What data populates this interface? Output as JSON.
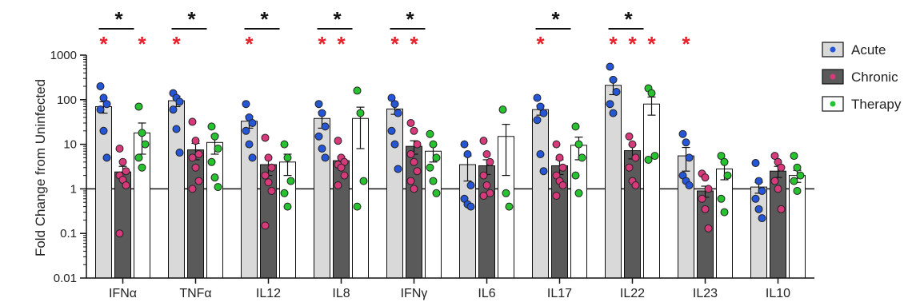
{
  "chart_data": {
    "type": "bar",
    "ylabel": "Fold Change from Uninfected",
    "yscale": "log",
    "ylim": [
      0.01,
      1000
    ],
    "yticks": [
      {
        "v": 0.01,
        "label": "0.01"
      },
      {
        "v": 0.1,
        "label": "0.1"
      },
      {
        "v": 1,
        "label": "1"
      },
      {
        "v": 10,
        "label": "10"
      },
      {
        "v": 100,
        "label": "100"
      },
      {
        "v": 1000,
        "label": "1000"
      }
    ],
    "reference_line": 1,
    "legend_position": "top-right",
    "categories": [
      "IFNα",
      "TNFα",
      "IL12",
      "IL8",
      "IFNγ",
      "IL6",
      "IL17",
      "IL22",
      "IL23",
      "IL10"
    ],
    "series": [
      {
        "name": "Acute",
        "bar_color": "#d9d9d9",
        "dot_color": "#2456d6",
        "values": [
          70,
          95,
          33,
          38,
          62,
          3.5,
          60,
          210,
          5.5,
          1.1
        ],
        "errors": [
          20,
          25,
          10,
          15,
          15,
          2,
          15,
          80,
          3,
          0.3
        ],
        "points": [
          [
            200,
            110,
            80,
            60,
            20,
            5
          ],
          [
            140,
            110,
            90,
            60,
            22,
            6.5
          ],
          [
            80,
            40,
            30,
            20,
            10,
            5
          ],
          [
            80,
            50,
            25,
            15,
            8,
            5
          ],
          [
            110,
            80,
            50,
            20,
            10,
            2.8
          ],
          [
            10,
            6,
            1.2,
            0.6,
            0.45,
            0.4
          ],
          [
            110,
            70,
            50,
            35,
            6,
            2.5
          ],
          [
            550,
            280,
            150,
            80,
            50
          ],
          [
            17,
            11,
            5,
            2,
            1.5,
            1.2
          ],
          [
            3.8,
            1.5,
            0.9,
            0.6,
            0.35,
            0.22
          ]
        ]
      },
      {
        "name": "Chronic",
        "bar_color": "#5a5a5a",
        "dot_color": "#d63a7a",
        "values": [
          2.4,
          7.5,
          3.5,
          4.3,
          9,
          3.3,
          3.3,
          7.2,
          0.9,
          2.5
        ],
        "errors": [
          0.8,
          3,
          1.5,
          1,
          3,
          1.2,
          1.2,
          2.5,
          0.25,
          0.7
        ],
        "points": [
          [
            8,
            4,
            2.5,
            2,
            1.6,
            1.2,
            0.1
          ],
          [
            32,
            12,
            6,
            5,
            3,
            1.5,
            1
          ],
          [
            14,
            5,
            3,
            2,
            1.4,
            0.9,
            0.15
          ],
          [
            12,
            5,
            4,
            3.5,
            3,
            2,
            1.2
          ],
          [
            30,
            20,
            10,
            6,
            4,
            2.5,
            1.5,
            1
          ],
          [
            12,
            6,
            4,
            2,
            1.2,
            0.8,
            0.7
          ],
          [
            10,
            5,
            3,
            2,
            1.5,
            1.2,
            0.7
          ],
          [
            15,
            10,
            5,
            3,
            1.5,
            1.2
          ],
          [
            2.2,
            1.8,
            1,
            0.6,
            0.35,
            0.13
          ],
          [
            5.5,
            4,
            3,
            1.5,
            1,
            0.35
          ]
        ]
      },
      {
        "name": "Therapy",
        "bar_color": "#ffffff",
        "dot_color": "#27c22f",
        "values": [
          18,
          11,
          4,
          38,
          7,
          15,
          9.5,
          80,
          2.8,
          2
        ],
        "errors": [
          12,
          5,
          2,
          30,
          3,
          13,
          5,
          35,
          1.2,
          0.6
        ],
        "points": [
          [
            70,
            18,
            10,
            5,
            3
          ],
          [
            25,
            15,
            8,
            4,
            1.8,
            1.1
          ],
          [
            10,
            5,
            1.5,
            0.8,
            0.4
          ],
          [
            160,
            50,
            1.5,
            0.4
          ],
          [
            17,
            10,
            5,
            3,
            1.5,
            0.8
          ],
          [
            60,
            0.8,
            0.4
          ],
          [
            25,
            10,
            5,
            2,
            0.8
          ],
          [
            180,
            140,
            5.5,
            4.5
          ],
          [
            5.5,
            4,
            2,
            0.6,
            0.3
          ],
          [
            5.5,
            3,
            2,
            1.5,
            0.9
          ]
        ]
      }
    ],
    "significance": {
      "black_brackets": [
        {
          "category": 0,
          "label": "*"
        },
        {
          "category": 1,
          "label": "*"
        },
        {
          "category": 2,
          "label": "*"
        },
        {
          "category": 3,
          "label": "*"
        },
        {
          "category": 4,
          "label": "*"
        },
        {
          "category": 6,
          "label": "*"
        },
        {
          "category": 7,
          "label": "*"
        }
      ],
      "red_stars": [
        {
          "category": 0,
          "series": 0,
          "label": "*"
        },
        {
          "category": 0,
          "series": 2,
          "label": "*"
        },
        {
          "category": 1,
          "series": 0,
          "label": "*"
        },
        {
          "category": 2,
          "series": 0,
          "label": "*"
        },
        {
          "category": 3,
          "series": 0,
          "label": "*"
        },
        {
          "category": 3,
          "series": 1,
          "label": "*"
        },
        {
          "category": 4,
          "series": 0,
          "label": "*"
        },
        {
          "category": 4,
          "series": 1,
          "label": "*"
        },
        {
          "category": 6,
          "series": 0,
          "label": "*"
        },
        {
          "category": 7,
          "series": 0,
          "label": "*"
        },
        {
          "category": 7,
          "series": 1,
          "label": "*"
        },
        {
          "category": 7,
          "series": 2,
          "label": "*"
        },
        {
          "category": 8,
          "series": 0,
          "label": "*"
        }
      ]
    }
  }
}
